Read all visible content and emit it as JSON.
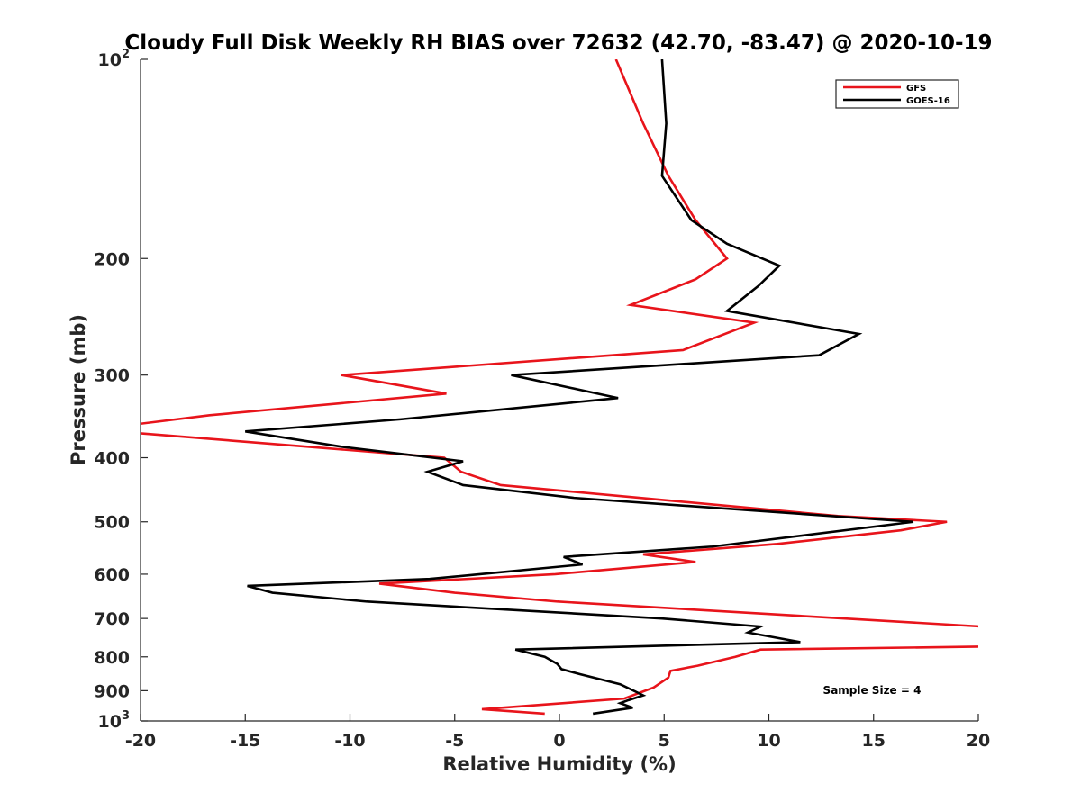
{
  "chart_data": {
    "type": "line",
    "title": "Cloudy Full Disk Weekly RH BIAS over 72632 (42.70, -83.47) @ 2020-10-19",
    "xlabel": "Relative Humidity (%)",
    "ylabel": "Pressure (mb)",
    "xlim": [
      -20,
      20
    ],
    "ylim": [
      100,
      1000
    ],
    "yscale": "log",
    "y_reversed": true,
    "grid": false,
    "legend_position": "top-right",
    "x_ticks": [
      "-20",
      "-15",
      "-10",
      "-5",
      "0",
      "5",
      "10",
      "15",
      "20"
    ],
    "y_ticks": [
      {
        "value": 100,
        "base": "10",
        "exp": "2"
      },
      {
        "value": 200,
        "label": "200"
      },
      {
        "value": 300,
        "label": "300"
      },
      {
        "value": 400,
        "label": "400"
      },
      {
        "value": 500,
        "label": "500"
      },
      {
        "value": 600,
        "label": "600"
      },
      {
        "value": 700,
        "label": "700"
      },
      {
        "value": 800,
        "label": "800"
      },
      {
        "value": 900,
        "label": "900"
      },
      {
        "value": 1000,
        "base": "10",
        "exp": "3"
      }
    ],
    "annotation": "Sample Size = 4",
    "series": [
      {
        "name": "GFS",
        "color": "#e8141b",
        "points": [
          [
            2.7,
            100
          ],
          [
            4.0,
            125
          ],
          [
            5.2,
            150
          ],
          [
            6.5,
            175
          ],
          [
            8.0,
            200
          ],
          [
            6.5,
            215
          ],
          [
            3.4,
            235
          ],
          [
            9.3,
            250
          ],
          [
            5.9,
            275
          ],
          [
            -10.4,
            300
          ],
          [
            -5.4,
            320
          ],
          [
            -16.7,
            345
          ],
          [
            -20.2,
            356
          ],
          [
            -20.2,
            367
          ],
          [
            -5.5,
            400
          ],
          [
            -4.7,
            420
          ],
          [
            -2.8,
            440
          ],
          [
            13.3,
            490
          ],
          [
            18.5,
            500
          ],
          [
            16.3,
            515
          ],
          [
            10.4,
            540
          ],
          [
            4.0,
            560
          ],
          [
            6.5,
            575
          ],
          [
            -0.2,
            600
          ],
          [
            -8.6,
            620
          ],
          [
            -5.0,
            640
          ],
          [
            -0.1,
            660
          ],
          [
            20.2,
            720
          ],
          [
            20.2,
            772
          ],
          [
            9.6,
            780
          ],
          [
            8.4,
            800
          ],
          [
            6.6,
            825
          ],
          [
            5.3,
            840
          ],
          [
            5.2,
            860
          ],
          [
            4.5,
            890
          ],
          [
            3.1,
            925
          ],
          [
            -3.7,
            960
          ],
          [
            -0.7,
            975
          ]
        ]
      },
      {
        "name": "GOES-16",
        "color": "#000000",
        "points": [
          [
            4.9,
            100
          ],
          [
            5.1,
            125
          ],
          [
            4.9,
            150
          ],
          [
            6.3,
            175
          ],
          [
            8.0,
            190
          ],
          [
            10.5,
            205
          ],
          [
            9.5,
            220
          ],
          [
            8.0,
            240
          ],
          [
            14.3,
            260
          ],
          [
            12.4,
            280
          ],
          [
            -2.3,
            300
          ],
          [
            2.8,
            325
          ],
          [
            -7.6,
            350
          ],
          [
            -15.0,
            365
          ],
          [
            -10.4,
            385
          ],
          [
            -4.6,
            405
          ],
          [
            -6.3,
            420
          ],
          [
            -4.6,
            440
          ],
          [
            0.7,
            460
          ],
          [
            16.9,
            500
          ],
          [
            7.3,
            545
          ],
          [
            0.2,
            565
          ],
          [
            1.1,
            580
          ],
          [
            -6.2,
            610
          ],
          [
            -14.9,
            625
          ],
          [
            -13.7,
            640
          ],
          [
            -9.2,
            660
          ],
          [
            4.9,
            700
          ],
          [
            9.6,
            720
          ],
          [
            9.0,
            735
          ],
          [
            11.5,
            760
          ],
          [
            -2.1,
            780
          ],
          [
            -0.7,
            800
          ],
          [
            -0.1,
            820
          ],
          [
            0.1,
            835
          ],
          [
            1.0,
            850
          ],
          [
            2.9,
            880
          ],
          [
            3.7,
            905
          ],
          [
            4.0,
            915
          ],
          [
            3.3,
            930
          ],
          [
            2.9,
            940
          ],
          [
            3.5,
            955
          ],
          [
            1.6,
            975
          ]
        ]
      }
    ]
  }
}
